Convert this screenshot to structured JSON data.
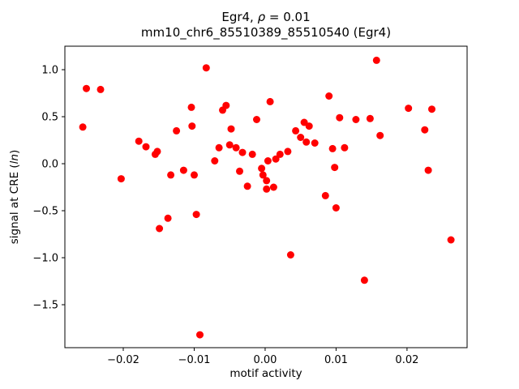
{
  "figure": {
    "background": "#ffffff"
  },
  "chart_data": {
    "type": "scatter",
    "title_prefix": "Egr4, ",
    "title_rho": "ρ",
    "title_suffix": " = 0.01",
    "subtitle": "mm10_chr6_85510389_85510540 (Egr4)",
    "xlabel": "motif activity",
    "ylabel_prefix": "signal at CRE (",
    "ylabel_italic": "ln",
    "ylabel_suffix": ")",
    "marker_color": "#ff0000",
    "axis_color": "#000000",
    "xlim": [
      -0.02823,
      0.02847
    ],
    "ylim": [
      -1.957,
      1.25
    ],
    "xticks": [
      -0.02,
      -0.01,
      0.0,
      0.01,
      0.02
    ],
    "xtick_labels": [
      "−0.02",
      "−0.01",
      "0.00",
      "0.01",
      "0.02"
    ],
    "yticks": [
      1.0,
      0.5,
      0.0,
      -0.5,
      -1.0,
      -1.5
    ],
    "ytick_labels": [
      "1.0",
      "0.5",
      "0.0",
      "−0.5",
      "−1.0",
      "−1.5"
    ],
    "x": [
      -0.0257,
      -0.0252,
      -0.0232,
      -0.0203,
      -0.0178,
      -0.0168,
      -0.0155,
      -0.0152,
      -0.0149,
      -0.0137,
      -0.0133,
      -0.0125,
      -0.0115,
      -0.0104,
      -0.0103,
      -0.01,
      -0.0097,
      -0.0092,
      -0.0083,
      -0.0071,
      -0.0065,
      -0.006,
      -0.0055,
      -0.005,
      -0.0048,
      -0.0041,
      -0.0036,
      -0.0032,
      -0.0025,
      -0.0018,
      -0.0012,
      -0.0005,
      -0.0003,
      0.0002,
      0.0002,
      0.0004,
      0.0007,
      0.0012,
      0.0015,
      0.0021,
      0.0032,
      0.0036,
      0.0043,
      0.005,
      0.0055,
      0.0058,
      0.0062,
      0.007,
      0.0085,
      0.009,
      0.0095,
      0.0098,
      0.01,
      0.0105,
      0.0112,
      0.0128,
      0.014,
      0.0148,
      0.0157,
      0.0162,
      0.0202,
      0.0225,
      0.023,
      0.0235,
      0.0262
    ],
    "y": [
      0.39,
      0.8,
      0.79,
      -0.16,
      0.24,
      0.18,
      0.1,
      0.13,
      -0.69,
      -0.58,
      -0.12,
      0.35,
      -0.07,
      0.6,
      0.4,
      -0.12,
      -0.54,
      -1.82,
      1.02,
      0.03,
      0.17,
      0.57,
      0.62,
      0.2,
      0.37,
      0.17,
      -0.08,
      0.12,
      -0.24,
      0.1,
      0.47,
      -0.05,
      -0.12,
      -0.18,
      -0.27,
      0.03,
      0.66,
      -0.25,
      0.05,
      0.1,
      0.13,
      -0.97,
      0.35,
      0.28,
      0.44,
      0.23,
      0.4,
      0.22,
      -0.34,
      0.72,
      0.16,
      -0.04,
      -0.47,
      0.49,
      0.17,
      0.47,
      -1.24,
      0.48,
      1.1,
      0.3,
      0.59,
      0.36,
      -0.07,
      0.58,
      -0.81
    ]
  }
}
